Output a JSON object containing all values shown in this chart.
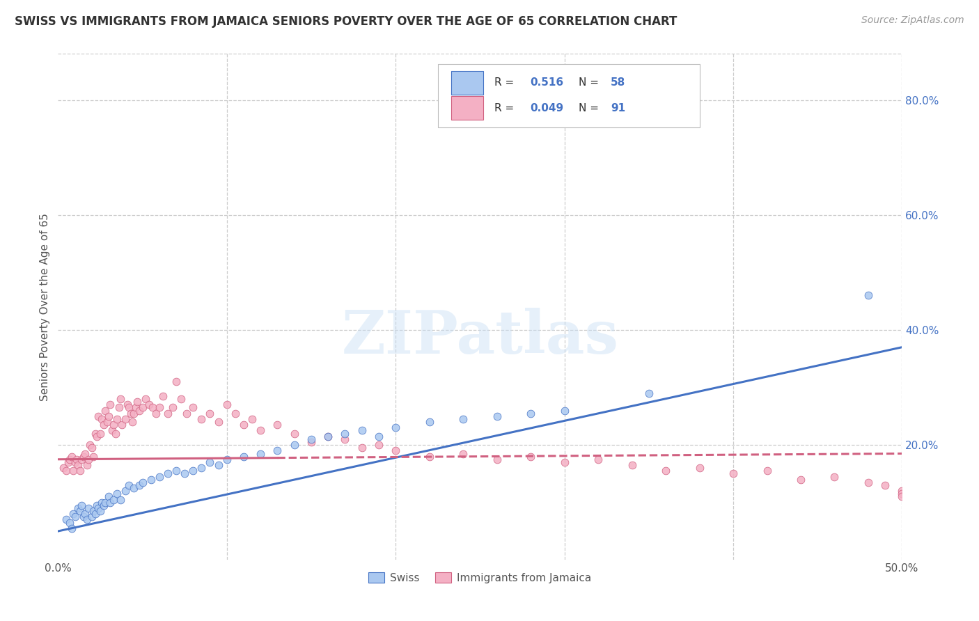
{
  "title": "SWISS VS IMMIGRANTS FROM JAMAICA SENIORS POVERTY OVER THE AGE OF 65 CORRELATION CHART",
  "source": "Source: ZipAtlas.com",
  "ylabel": "Seniors Poverty Over the Age of 65",
  "xlim": [
    0.0,
    0.5
  ],
  "ylim": [
    0.0,
    0.88
  ],
  "xtick_values": [
    0.0,
    0.1,
    0.2,
    0.3,
    0.4,
    0.5
  ],
  "xtick_labels": [
    "0.0%",
    "",
    "",
    "",
    "",
    "50.0%"
  ],
  "ytick_values": [
    0.2,
    0.4,
    0.6,
    0.8
  ],
  "ytick_labels": [
    "20.0%",
    "40.0%",
    "60.0%",
    "80.0%"
  ],
  "swiss_R": 0.516,
  "swiss_N": 58,
  "jamaica_R": 0.049,
  "jamaica_N": 91,
  "swiss_color": "#aac8f0",
  "swiss_line_color": "#4472c4",
  "jamaica_color": "#f4b0c4",
  "jamaica_line_color": "#d06080",
  "swiss_scatter_x": [
    0.005,
    0.007,
    0.008,
    0.009,
    0.01,
    0.012,
    0.013,
    0.014,
    0.015,
    0.016,
    0.017,
    0.018,
    0.02,
    0.021,
    0.022,
    0.023,
    0.024,
    0.025,
    0.026,
    0.027,
    0.028,
    0.03,
    0.031,
    0.033,
    0.035,
    0.037,
    0.04,
    0.042,
    0.045,
    0.048,
    0.05,
    0.055,
    0.06,
    0.065,
    0.07,
    0.075,
    0.08,
    0.085,
    0.09,
    0.095,
    0.1,
    0.11,
    0.12,
    0.13,
    0.14,
    0.15,
    0.16,
    0.17,
    0.18,
    0.19,
    0.2,
    0.22,
    0.24,
    0.26,
    0.28,
    0.3,
    0.35,
    0.48
  ],
  "swiss_scatter_y": [
    0.07,
    0.065,
    0.055,
    0.08,
    0.075,
    0.09,
    0.085,
    0.095,
    0.075,
    0.08,
    0.07,
    0.09,
    0.075,
    0.085,
    0.08,
    0.095,
    0.09,
    0.085,
    0.1,
    0.095,
    0.1,
    0.11,
    0.1,
    0.105,
    0.115,
    0.105,
    0.12,
    0.13,
    0.125,
    0.13,
    0.135,
    0.14,
    0.145,
    0.15,
    0.155,
    0.15,
    0.155,
    0.16,
    0.17,
    0.165,
    0.175,
    0.18,
    0.185,
    0.19,
    0.2,
    0.21,
    0.215,
    0.22,
    0.225,
    0.215,
    0.23,
    0.24,
    0.245,
    0.25,
    0.255,
    0.26,
    0.29,
    0.46
  ],
  "jamaica_scatter_x": [
    0.003,
    0.005,
    0.006,
    0.007,
    0.008,
    0.009,
    0.01,
    0.011,
    0.012,
    0.013,
    0.014,
    0.015,
    0.016,
    0.017,
    0.018,
    0.019,
    0.02,
    0.021,
    0.022,
    0.023,
    0.024,
    0.025,
    0.026,
    0.027,
    0.028,
    0.029,
    0.03,
    0.031,
    0.032,
    0.033,
    0.034,
    0.035,
    0.036,
    0.037,
    0.038,
    0.04,
    0.041,
    0.042,
    0.043,
    0.044,
    0.045,
    0.046,
    0.047,
    0.048,
    0.05,
    0.052,
    0.054,
    0.056,
    0.058,
    0.06,
    0.062,
    0.065,
    0.068,
    0.07,
    0.073,
    0.076,
    0.08,
    0.085,
    0.09,
    0.095,
    0.1,
    0.105,
    0.11,
    0.115,
    0.12,
    0.13,
    0.14,
    0.15,
    0.16,
    0.17,
    0.18,
    0.19,
    0.2,
    0.22,
    0.24,
    0.26,
    0.28,
    0.3,
    0.32,
    0.34,
    0.36,
    0.38,
    0.4,
    0.42,
    0.44,
    0.46,
    0.48,
    0.49,
    0.5,
    0.5,
    0.5
  ],
  "jamaica_scatter_y": [
    0.16,
    0.155,
    0.17,
    0.175,
    0.18,
    0.155,
    0.17,
    0.175,
    0.165,
    0.155,
    0.175,
    0.18,
    0.185,
    0.165,
    0.175,
    0.2,
    0.195,
    0.18,
    0.22,
    0.215,
    0.25,
    0.22,
    0.245,
    0.235,
    0.26,
    0.24,
    0.25,
    0.27,
    0.225,
    0.235,
    0.22,
    0.245,
    0.265,
    0.28,
    0.235,
    0.245,
    0.27,
    0.265,
    0.255,
    0.24,
    0.255,
    0.265,
    0.275,
    0.26,
    0.265,
    0.28,
    0.27,
    0.265,
    0.255,
    0.265,
    0.285,
    0.255,
    0.265,
    0.31,
    0.28,
    0.255,
    0.265,
    0.245,
    0.255,
    0.24,
    0.27,
    0.255,
    0.235,
    0.245,
    0.225,
    0.235,
    0.22,
    0.205,
    0.215,
    0.21,
    0.195,
    0.2,
    0.19,
    0.18,
    0.185,
    0.175,
    0.18,
    0.17,
    0.175,
    0.165,
    0.155,
    0.16,
    0.15,
    0.155,
    0.14,
    0.145,
    0.135,
    0.13,
    0.12,
    0.115,
    0.11
  ],
  "swiss_line_x0": 0.0,
  "swiss_line_y0": 0.05,
  "swiss_line_x1": 0.5,
  "swiss_line_y1": 0.37,
  "jamaica_line_x0": 0.0,
  "jamaica_line_y0": 0.175,
  "jamaica_line_x1": 0.5,
  "jamaica_line_y1": 0.185,
  "watermark_text": "ZIPatlas",
  "background_color": "#ffffff",
  "grid_color": "#cccccc"
}
